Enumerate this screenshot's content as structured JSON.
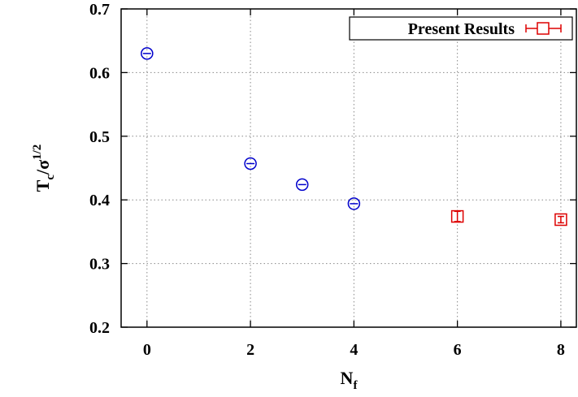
{
  "chart_data": {
    "type": "scatter",
    "xlim": [
      -0.5,
      8.3
    ],
    "ylim": [
      0.2,
      0.7
    ],
    "x_ticks": [
      0,
      2,
      4,
      6,
      8
    ],
    "y_ticks": [
      0.2,
      0.3,
      0.4,
      0.5,
      0.6,
      0.7
    ],
    "x_tick_labels": [
      "0",
      "2",
      "4",
      "6",
      "8"
    ],
    "y_tick_labels": [
      "0.2",
      "0.3",
      "0.4",
      "0.5",
      "0.6",
      "0.7"
    ],
    "xlabel": {
      "main": "N",
      "sub": "f"
    },
    "ylabel": {
      "main": "T",
      "sub": "c",
      "mid": "/σ",
      "sup": "1/2"
    },
    "grid": true,
    "legend_position": "top-right",
    "series": [
      {
        "marker": "circle",
        "color": "#0000cc",
        "points": [
          {
            "x": 0,
            "y": 0.63,
            "err": 0.003
          },
          {
            "x": 2,
            "y": 0.457,
            "err": 0.003
          },
          {
            "x": 3,
            "y": 0.424,
            "err": 0.003
          },
          {
            "x": 4,
            "y": 0.394,
            "err": 0.003
          }
        ]
      },
      {
        "name": "Present Results",
        "marker": "square",
        "color": "#dd0000",
        "points": [
          {
            "x": 6,
            "y": 0.374,
            "err": 0.008
          },
          {
            "x": 8,
            "y": 0.369,
            "err": 0.005
          }
        ]
      }
    ]
  }
}
